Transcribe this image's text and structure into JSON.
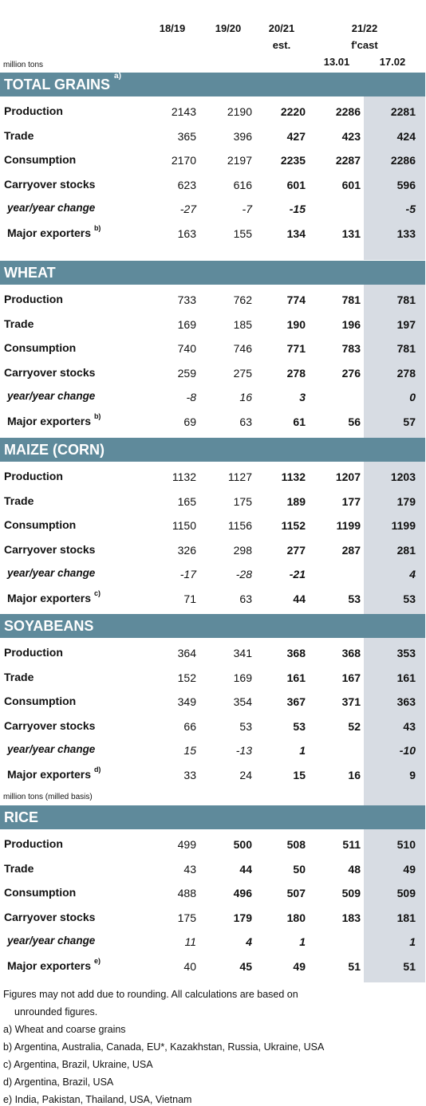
{
  "header": {
    "col1": "18/19",
    "col2": "19/20",
    "col3_line1": "20/21",
    "col3_line2": "est.",
    "col45_line1": "21/22",
    "col45_line2": "f'cast",
    "col4": "13.01",
    "col5": "17.02",
    "units": "million tons"
  },
  "rice_units": "million tons (milled basis)",
  "sections": [
    {
      "title": "TOTAL GRAINS",
      "note": "a)",
      "rows": [
        {
          "label": "Production",
          "vals": [
            "2143",
            "2190",
            "2220",
            "2286",
            "2281"
          ]
        },
        {
          "label": "Trade",
          "vals": [
            "365",
            "396",
            "427",
            "423",
            "424"
          ]
        },
        {
          "label": "Consumption",
          "vals": [
            "2170",
            "2197",
            "2235",
            "2287",
            "2286"
          ]
        },
        {
          "label": "Carryover stocks",
          "vals": [
            "623",
            "616",
            "601",
            "601",
            "596"
          ]
        },
        {
          "label": "year/year change",
          "vals": [
            "-27",
            "-7",
            "-15",
            "",
            "-5"
          ]
        },
        {
          "label": "Major exporters",
          "note": "b)",
          "vals": [
            "163",
            "155",
            "134",
            "131",
            "133"
          ]
        }
      ]
    },
    {
      "title": "WHEAT",
      "rows": [
        {
          "label": "Production",
          "vals": [
            "733",
            "762",
            "774",
            "781",
            "781"
          ]
        },
        {
          "label": "Trade",
          "vals": [
            "169",
            "185",
            "190",
            "196",
            "197"
          ]
        },
        {
          "label": "Consumption",
          "vals": [
            "740",
            "746",
            "771",
            "783",
            "781"
          ]
        },
        {
          "label": "Carryover stocks",
          "vals": [
            "259",
            "275",
            "278",
            "276",
            "278"
          ]
        },
        {
          "label": "year/year change",
          "vals": [
            "-8",
            "16",
            "3",
            "",
            "0"
          ]
        },
        {
          "label": "Major exporters",
          "note": "b)",
          "vals": [
            "69",
            "63",
            "61",
            "56",
            "57"
          ]
        }
      ]
    },
    {
      "title": "MAIZE (CORN)",
      "rows": [
        {
          "label": "Production",
          "vals": [
            "1132",
            "1127",
            "1132",
            "1207",
            "1203"
          ]
        },
        {
          "label": "Trade",
          "vals": [
            "165",
            "175",
            "189",
            "177",
            "179"
          ]
        },
        {
          "label": "Consumption",
          "vals": [
            "1150",
            "1156",
            "1152",
            "1199",
            "1199"
          ]
        },
        {
          "label": "Carryover stocks",
          "vals": [
            "326",
            "298",
            "277",
            "287",
            "281"
          ]
        },
        {
          "label": "year/year change",
          "vals": [
            "-17",
            "-28",
            "-21",
            "",
            "4"
          ]
        },
        {
          "label": "Major exporters",
          "note": "c)",
          "vals": [
            "71",
            "63",
            "44",
            "53",
            "53"
          ]
        }
      ]
    },
    {
      "title": "SOYABEANS",
      "rows": [
        {
          "label": "Production",
          "vals": [
            "364",
            "341",
            "368",
            "368",
            "353"
          ]
        },
        {
          "label": "Trade",
          "vals": [
            "152",
            "169",
            "161",
            "167",
            "161"
          ]
        },
        {
          "label": "Consumption",
          "vals": [
            "349",
            "354",
            "367",
            "371",
            "363"
          ]
        },
        {
          "label": "Carryover stocks",
          "vals": [
            "66",
            "53",
            "53",
            "52",
            "43"
          ]
        },
        {
          "label": "year/year change",
          "vals": [
            "15",
            "-13",
            "1",
            "",
            "-10"
          ]
        },
        {
          "label": "Major exporters",
          "note": "d)",
          "vals": [
            "33",
            "24",
            "15",
            "16",
            "9"
          ]
        }
      ]
    },
    {
      "title": "RICE",
      "rows": [
        {
          "label": "Production",
          "vals": [
            "499",
            "500",
            "508",
            "511",
            "510"
          ]
        },
        {
          "label": "Trade",
          "vals": [
            "43",
            "44",
            "50",
            "48",
            "49"
          ]
        },
        {
          "label": "Consumption",
          "vals": [
            "488",
            "496",
            "507",
            "509",
            "509"
          ]
        },
        {
          "label": "Carryover stocks",
          "vals": [
            "175",
            "179",
            "180",
            "183",
            "181"
          ]
        },
        {
          "label": "year/year change",
          "vals": [
            "11",
            "4",
            "1",
            "",
            "1"
          ]
        },
        {
          "label": "Major exporters",
          "note": "e)",
          "vals": [
            "40",
            "45",
            "49",
            "51",
            "51"
          ]
        }
      ]
    }
  ],
  "footnotes": {
    "rounding_1": "Figures may not add due to rounding. All calculations are based on",
    "rounding_2": "unrounded figures.",
    "a": "a) Wheat and coarse grains",
    "b": "b) Argentina, Australia, Canada, EU*, Kazakhstan, Russia, Ukraine, USA",
    "c": "c) Argentina, Brazil, Ukraine, USA",
    "d": "d) Argentina, Brazil, USA",
    "e": "e) India, Pakistan, Thailand, USA, Vietnam"
  }
}
